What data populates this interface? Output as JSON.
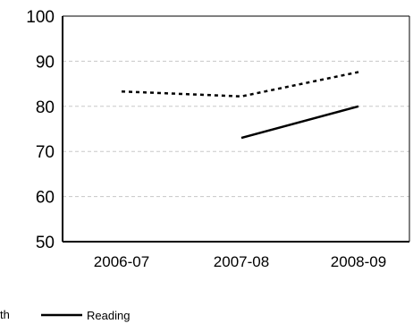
{
  "chart_data": {
    "type": "line",
    "categories": [
      "2006-07",
      "2007-08",
      "2008-09"
    ],
    "ylim": [
      50,
      100
    ],
    "y_ticks": [
      50,
      60,
      70,
      80,
      90,
      100
    ],
    "grid": "horizontal dashed",
    "legend_position": "bottom",
    "series": [
      {
        "name": "Math",
        "legend_visible_text": "th",
        "style": "dotted",
        "color": "#000000",
        "values": [
          83.3,
          82.2,
          87.6
        ]
      },
      {
        "name": "Reading",
        "style": "solid",
        "color": "#000000",
        "values": [
          null,
          73,
          80
        ]
      }
    ]
  }
}
